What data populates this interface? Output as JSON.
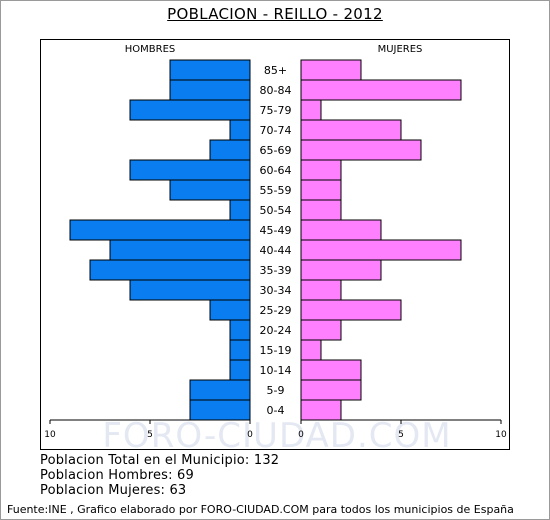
{
  "title": "POBLACION - REILLO - 2012",
  "chart_data": {
    "type": "bar",
    "orientation": "horizontal",
    "subtype": "population-pyramid",
    "title": "POBLACION - REILLO - 2012",
    "categories": [
      "85+",
      "80-84",
      "75-79",
      "70-74",
      "65-69",
      "60-64",
      "55-59",
      "50-54",
      "45-49",
      "40-44",
      "35-39",
      "30-34",
      "25-29",
      "20-24",
      "15-19",
      "10-14",
      "5-9",
      "0-4"
    ],
    "series": [
      {
        "name": "HOMBRES",
        "color": "#0a7ef0",
        "values": [
          4,
          4,
          6,
          1,
          2,
          6,
          4,
          1,
          9,
          7,
          8,
          6,
          2,
          1,
          1,
          1,
          3,
          3
        ]
      },
      {
        "name": "MUJERES",
        "color": "#ff80ff",
        "values": [
          3,
          8,
          1,
          5,
          6,
          2,
          2,
          2,
          4,
          8,
          4,
          2,
          5,
          2,
          1,
          3,
          3,
          2
        ]
      }
    ],
    "left_ticks": [
      "10",
      "5",
      "0"
    ],
    "right_ticks": [
      "0",
      "5",
      "10"
    ],
    "xlim": [
      0,
      10
    ],
    "grid": false,
    "watermark": "FORO-CIUDAD.COM"
  },
  "stats": {
    "total": "Poblacion Total en el Municipio: 132",
    "hombres": "Poblacion Hombres: 69",
    "mujeres": "Poblacion Mujeres: 63"
  },
  "footer": "Fuente:INE , Grafico elaborado por FORO-CIUDAD.COM para todos los municipios de España"
}
